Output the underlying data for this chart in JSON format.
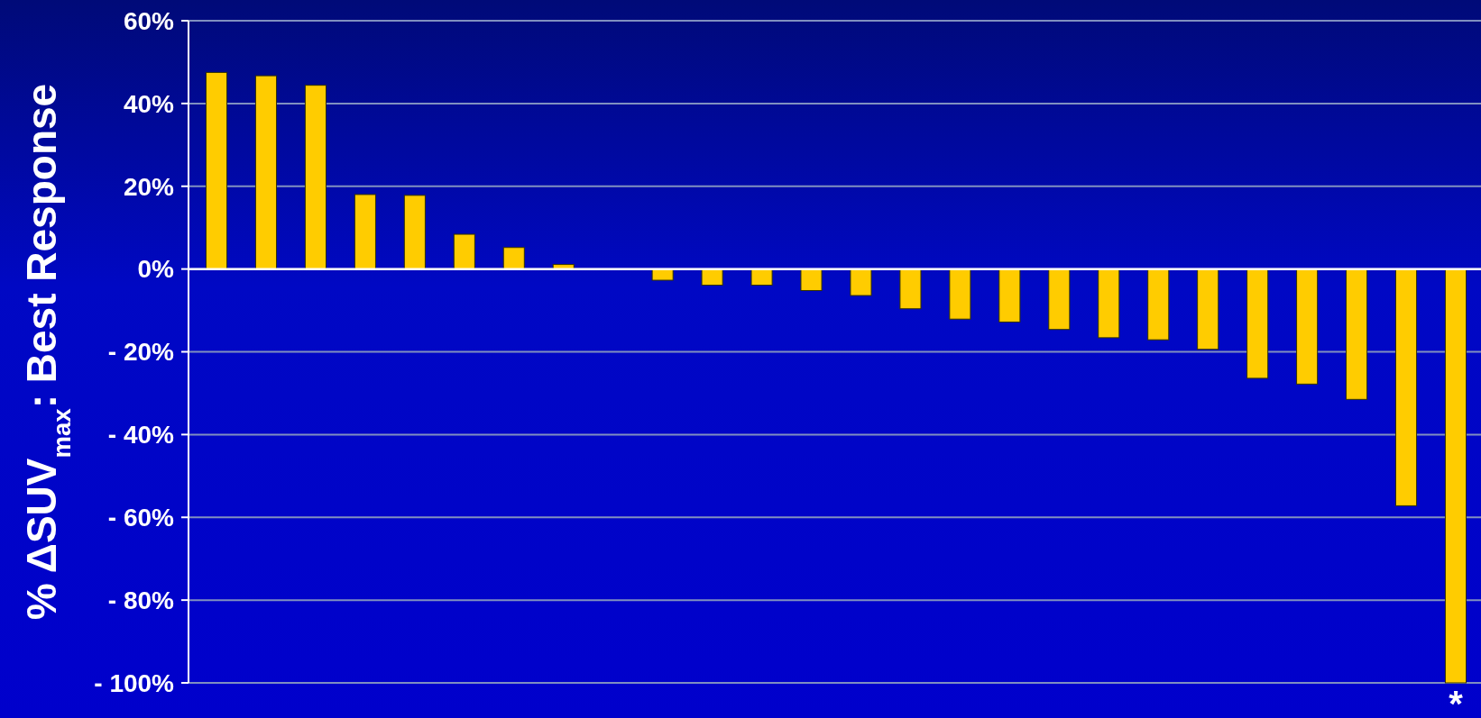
{
  "chart_data": {
    "type": "bar",
    "ylabel": "% ΔSUV$_{max}$: Best Response",
    "categories": [
      null,
      null,
      null,
      null,
      null,
      null,
      null,
      null,
      null,
      null,
      null,
      null,
      null,
      null,
      null,
      null,
      null,
      null,
      null,
      null,
      null,
      null,
      null,
      null,
      null,
      null
    ],
    "values": [
      47.5,
      46.7,
      44.4,
      18,
      17.8,
      8.4,
      5.2,
      1.1,
      0,
      -2.7,
      -3.9,
      -3.9,
      -5.2,
      -6.4,
      -9.6,
      -12.1,
      -12.8,
      -14.6,
      -16.6,
      -17.1,
      -19.4,
      -26.4,
      -27.8,
      -31.5,
      -57.2,
      -100
    ],
    "color": "#ffcc00",
    "ylim": [
      -100,
      60
    ],
    "yticks": [
      {
        "value": 60,
        "label": "60%"
      },
      {
        "value": 40,
        "label": "40%"
      },
      {
        "value": 20,
        "label": "20%"
      },
      {
        "value": 0,
        "label": "0%"
      },
      {
        "value": -20,
        "label": "- 20%"
      },
      {
        "value": -40,
        "label": "- 40%"
      },
      {
        "value": -60,
        "label": "- 60%"
      },
      {
        "value": -80,
        "label": "- 80%"
      },
      {
        "value": -100,
        "label": "- 100%"
      }
    ],
    "grid": "y",
    "annotations": [
      "*"
    ]
  }
}
